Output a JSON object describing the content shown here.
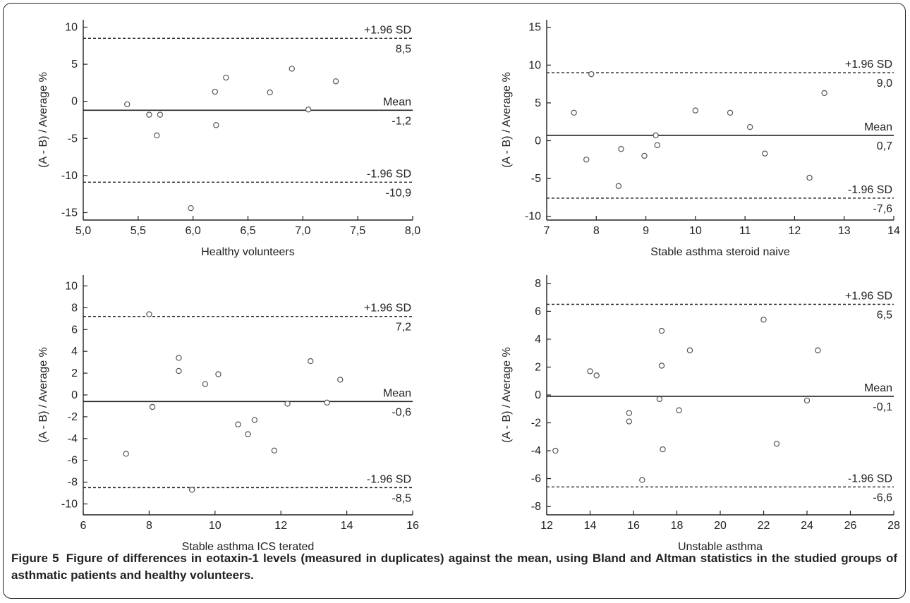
{
  "caption": {
    "label": "Figure 5",
    "text": "Figure of differences in eotaxin-1 levels (measured in duplicates) against the mean, using Bland and Altman statistics in the studied groups of asthmatic patients and healthy volunteers."
  },
  "chart_data": [
    {
      "type": "scatter",
      "xlabel": "Healthy volunteers",
      "ylabel": "(A - B) / Average %",
      "xlim": [
        5.0,
        8.0
      ],
      "ylim": [
        -16,
        11
      ],
      "xticks": [
        "5,0",
        "5,5",
        "6,0",
        "6,5",
        "7,0",
        "7,5",
        "8,0"
      ],
      "xtick_values": [
        5.0,
        5.5,
        6.0,
        6.5,
        7.0,
        7.5,
        8.0
      ],
      "yticks": [
        "10",
        "5",
        "0",
        "-5",
        "-10",
        "-15"
      ],
      "ytick_values": [
        10,
        5,
        0,
        -5,
        -10,
        -15
      ],
      "points": [
        [
          5.4,
          -0.4
        ],
        [
          5.6,
          -1.8
        ],
        [
          5.67,
          -4.6
        ],
        [
          5.7,
          -1.8
        ],
        [
          5.98,
          -14.4
        ],
        [
          6.2,
          1.3
        ],
        [
          6.21,
          -3.2
        ],
        [
          6.3,
          3.2
        ],
        [
          6.7,
          1.2
        ],
        [
          6.9,
          4.4
        ],
        [
          7.05,
          -1.1
        ],
        [
          7.3,
          2.7
        ]
      ],
      "lines": [
        {
          "label": "+1.96 SD",
          "value_label": "8,5",
          "y": 8.5,
          "style": "dashed"
        },
        {
          "label": "Mean",
          "value_label": "-1,2",
          "y": -1.2,
          "style": "solid"
        },
        {
          "label": "-1.96 SD",
          "value_label": "-10,9",
          "y": -10.9,
          "style": "dashed"
        }
      ]
    },
    {
      "type": "scatter",
      "xlabel": "Stable asthma steroid naive",
      "ylabel": "(A - B) / Average %",
      "xlim": [
        7,
        14
      ],
      "ylim": [
        -10.5,
        16
      ],
      "xticks": [
        "7",
        "8",
        "9",
        "10",
        "11",
        "12",
        "13",
        "14"
      ],
      "xtick_values": [
        7,
        8,
        9,
        10,
        11,
        12,
        13,
        14
      ],
      "yticks": [
        "15",
        "10",
        "5",
        "0",
        "-5",
        "-10"
      ],
      "ytick_values": [
        15,
        10,
        5,
        0,
        -5,
        -10
      ],
      "points": [
        [
          7.55,
          3.7
        ],
        [
          7.8,
          -2.5
        ],
        [
          7.9,
          8.8
        ],
        [
          8.45,
          -6.0
        ],
        [
          8.5,
          -1.1
        ],
        [
          8.97,
          -2.0
        ],
        [
          9.2,
          0.7
        ],
        [
          9.23,
          -0.6
        ],
        [
          10.0,
          4.0
        ],
        [
          10.7,
          3.7
        ],
        [
          11.1,
          1.8
        ],
        [
          11.4,
          -1.7
        ],
        [
          12.3,
          -4.9
        ],
        [
          12.6,
          6.3
        ]
      ],
      "lines": [
        {
          "label": "+1.96 SD",
          "value_label": "9,0",
          "y": 9.0,
          "style": "dashed"
        },
        {
          "label": "Mean",
          "value_label": "0,7",
          "y": 0.7,
          "style": "solid"
        },
        {
          "label": "-1.96 SD",
          "value_label": "-7,6",
          "y": -7.6,
          "style": "dashed"
        }
      ]
    },
    {
      "type": "scatter",
      "xlabel": "Stable asthma ICS terated",
      "ylabel": "(A - B) / Average %",
      "xlim": [
        6,
        16
      ],
      "ylim": [
        -11,
        11
      ],
      "xticks": [
        "6",
        "8",
        "10",
        "12",
        "14",
        "16"
      ],
      "xtick_values": [
        6,
        8,
        10,
        12,
        14,
        16
      ],
      "yticks": [
        "10",
        "8",
        "6",
        "4",
        "2",
        "0",
        "-2",
        "-4",
        "-6",
        "-8",
        "-10"
      ],
      "ytick_values": [
        10,
        8,
        6,
        4,
        2,
        0,
        -2,
        -4,
        -6,
        -8,
        -10
      ],
      "points": [
        [
          7.3,
          -5.4
        ],
        [
          8.0,
          7.4
        ],
        [
          8.1,
          -1.1
        ],
        [
          8.9,
          3.4
        ],
        [
          8.9,
          2.2
        ],
        [
          9.3,
          -8.7
        ],
        [
          9.7,
          1.0
        ],
        [
          10.1,
          1.9
        ],
        [
          10.7,
          -2.7
        ],
        [
          11.0,
          -3.6
        ],
        [
          11.2,
          -2.3
        ],
        [
          11.8,
          -5.1
        ],
        [
          12.2,
          -0.8
        ],
        [
          12.9,
          3.1
        ],
        [
          13.4,
          -0.7
        ],
        [
          13.8,
          1.4
        ]
      ],
      "lines": [
        {
          "label": "+1.96 SD",
          "value_label": "7,2",
          "y": 7.2,
          "style": "dashed"
        },
        {
          "label": "Mean",
          "value_label": "-0,6",
          "y": -0.6,
          "style": "solid"
        },
        {
          "label": "-1.96 SD",
          "value_label": "-8,5",
          "y": -8.5,
          "style": "dashed"
        }
      ]
    },
    {
      "type": "scatter",
      "xlabel": "Unstable asthma",
      "ylabel": "(A - B) / Average %",
      "xlim": [
        12,
        28
      ],
      "ylim": [
        -8.6,
        8.6
      ],
      "xticks": [
        "12",
        "14",
        "16",
        "18",
        "20",
        "22",
        "24",
        "26",
        "28"
      ],
      "xtick_values": [
        12,
        14,
        16,
        18,
        20,
        22,
        24,
        26,
        28
      ],
      "yticks": [
        "8",
        "6",
        "4",
        "2",
        "0",
        "-2",
        "-4",
        "-6",
        "-8"
      ],
      "ytick_values": [
        8,
        6,
        4,
        2,
        0,
        -2,
        -4,
        -6,
        -8
      ],
      "points": [
        [
          12.4,
          -4.0
        ],
        [
          14.0,
          1.7
        ],
        [
          14.3,
          1.4
        ],
        [
          15.8,
          -1.3
        ],
        [
          15.8,
          -1.9
        ],
        [
          16.4,
          -6.1
        ],
        [
          17.2,
          -0.3
        ],
        [
          17.3,
          4.6
        ],
        [
          17.3,
          2.1
        ],
        [
          17.35,
          -3.9
        ],
        [
          18.1,
          -1.1
        ],
        [
          18.6,
          3.2
        ],
        [
          22.0,
          5.4
        ],
        [
          22.6,
          -3.5
        ],
        [
          24.0,
          -0.4
        ],
        [
          24.5,
          3.2
        ]
      ],
      "lines": [
        {
          "label": "+1.96 SD",
          "value_label": "6,5",
          "y": 6.5,
          "style": "dashed"
        },
        {
          "label": "Mean",
          "value_label": "-0,1",
          "y": -0.1,
          "style": "solid"
        },
        {
          "label": "-1.96 SD",
          "value_label": "-6,6",
          "y": -6.6,
          "style": "dashed"
        }
      ]
    }
  ]
}
